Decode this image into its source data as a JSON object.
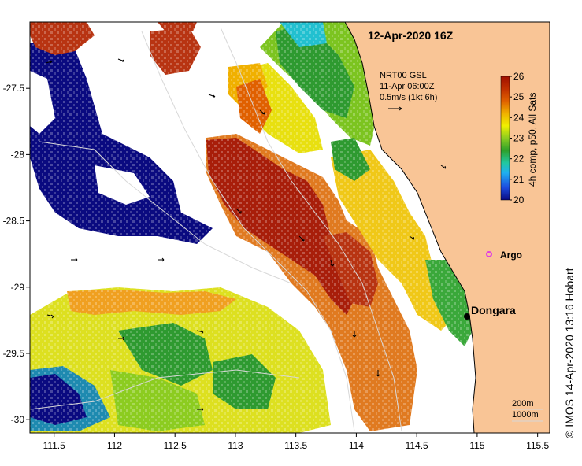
{
  "map": {
    "title": "12-Apr-2020 16Z",
    "current_info": [
      "NRT00 GSL",
      "11-Apr 06:00Z",
      "0.5m/s (1kt 6h)"
    ],
    "x_ticks": [
      "111.5",
      "112",
      "112.5",
      "113",
      "113.5",
      "114",
      "114.5",
      "115",
      "115.5"
    ],
    "x_tick_values": [
      111.5,
      112,
      112.5,
      113,
      113.5,
      114,
      114.5,
      115,
      115.5
    ],
    "y_ticks": [
      "-27.5",
      "-28",
      "-28.5",
      "-29",
      "-29.5",
      "-30"
    ],
    "y_tick_values": [
      -27.5,
      -28,
      -28.5,
      -29,
      -29.5,
      -30
    ],
    "xlim": [
      111.3,
      115.6
    ],
    "ylim": [
      -30.1,
      -27.0
    ],
    "land_color": "#f9c596",
    "places": [
      {
        "name": "Dongara",
        "lon": 114.93,
        "lat": -29.25,
        "color": "#000000"
      }
    ],
    "argo": {
      "label": "Argo",
      "lon": 115.12,
      "lat": -28.85,
      "color": "#e040e0"
    },
    "isobath_labels": [
      "200m",
      "1000m"
    ],
    "colorbar": {
      "label": "4h comp, p50, All Sats",
      "ticks": [
        "26",
        "25",
        "24",
        "23",
        "22",
        "21",
        "20"
      ],
      "min": 20,
      "max": 26,
      "colors": [
        "#0a0a80",
        "#1c4be0",
        "#20b0f0",
        "#22c8a0",
        "#2ea02a",
        "#8ccc20",
        "#f0f000",
        "#f0b000",
        "#e06000",
        "#c03000",
        "#a01000"
      ]
    },
    "credit": "© IMOS 14-Apr-2020 13:16 Hobart"
  }
}
